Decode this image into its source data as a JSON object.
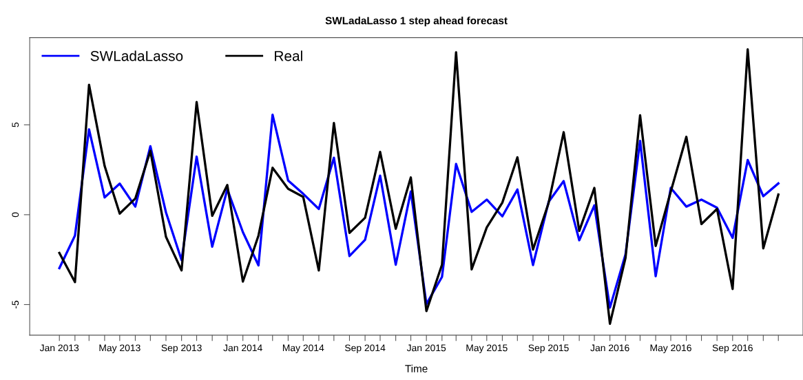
{
  "chart_data": {
    "type": "line",
    "title": "SWLadaLasso 1 step ahead forecast",
    "xlabel": "Time",
    "x": [
      "2013-01",
      "2013-02",
      "2013-03",
      "2013-04",
      "2013-05",
      "2013-06",
      "2013-07",
      "2013-08",
      "2013-09",
      "2013-10",
      "2013-11",
      "2013-12",
      "2014-01",
      "2014-02",
      "2014-03",
      "2014-04",
      "2014-05",
      "2014-06",
      "2014-07",
      "2014-08",
      "2014-09",
      "2014-10",
      "2014-11",
      "2014-12",
      "2015-01",
      "2015-02",
      "2015-03",
      "2015-04",
      "2015-05",
      "2015-06",
      "2015-07",
      "2015-08",
      "2015-09",
      "2015-10",
      "2015-11",
      "2015-12",
      "2016-01",
      "2016-02",
      "2016-03",
      "2016-04",
      "2016-05",
      "2016-06",
      "2016-07",
      "2016-08",
      "2016-09",
      "2016-10",
      "2016-11",
      "2016-12"
    ],
    "series": [
      {
        "name": "SWLadaLasso",
        "color": "#0000ff",
        "values": [
          -2.97,
          -1.16,
          4.75,
          0.96,
          1.73,
          0.45,
          3.81,
          0.13,
          -2.52,
          3.23,
          -1.78,
          1.42,
          -0.97,
          -2.82,
          5.56,
          1.9,
          1.16,
          0.32,
          3.17,
          -2.3,
          -1.4,
          2.17,
          -2.78,
          1.29,
          -4.97,
          -3.46,
          2.82,
          0.16,
          0.84,
          -0.09,
          1.4,
          -2.8,
          0.71,
          1.87,
          -1.42,
          0.52,
          -5.17,
          -2.2,
          4.11,
          -3.42,
          1.49,
          0.45,
          0.84,
          0.39,
          -1.29,
          3.04,
          1.03,
          1.74
        ]
      },
      {
        "name": "Real",
        "color": "#000000",
        "values": [
          -2.13,
          -3.75,
          7.23,
          2.71,
          0.06,
          0.9,
          3.55,
          -1.23,
          -3.1,
          6.27,
          -0.06,
          1.65,
          -3.72,
          -1.16,
          2.61,
          1.44,
          0.99,
          -3.1,
          5.1,
          -1.01,
          -0.17,
          3.49,
          -0.78,
          2.07,
          -5.36,
          -2.78,
          9.04,
          -3.04,
          -0.71,
          0.67,
          3.19,
          -1.94,
          0.65,
          4.59,
          -0.9,
          1.49,
          -6.07,
          -2.4,
          5.53,
          -1.74,
          1.29,
          4.33,
          -0.52,
          0.32,
          -4.13,
          9.2,
          -1.87,
          1.12
        ]
      }
    ],
    "xlim": [
      "2012-11-03",
      "2017-01-19"
    ],
    "xticks": [
      {
        "value": "2013-01",
        "label": "Jan 2013"
      },
      {
        "value": "2013-02",
        "label": null
      },
      {
        "value": "2013-03",
        "label": null
      },
      {
        "value": "2013-04",
        "label": null
      },
      {
        "value": "2013-05",
        "label": "May 2013"
      },
      {
        "value": "2013-06",
        "label": null
      },
      {
        "value": "2013-07",
        "label": null
      },
      {
        "value": "2013-08",
        "label": null
      },
      {
        "value": "2013-09",
        "label": "Sep 2013"
      },
      {
        "value": "2013-10",
        "label": null
      },
      {
        "value": "2013-11",
        "label": null
      },
      {
        "value": "2013-12",
        "label": null
      },
      {
        "value": "2014-01",
        "label": "Jan 2014"
      },
      {
        "value": "2014-02",
        "label": null
      },
      {
        "value": "2014-03",
        "label": null
      },
      {
        "value": "2014-04",
        "label": null
      },
      {
        "value": "2014-05",
        "label": "May 2014"
      },
      {
        "value": "2014-06",
        "label": null
      },
      {
        "value": "2014-07",
        "label": null
      },
      {
        "value": "2014-08",
        "label": null
      },
      {
        "value": "2014-09",
        "label": "Sep 2014"
      },
      {
        "value": "2014-10",
        "label": null
      },
      {
        "value": "2014-11",
        "label": null
      },
      {
        "value": "2014-12",
        "label": null
      },
      {
        "value": "2015-01",
        "label": "Jan 2015"
      },
      {
        "value": "2015-02",
        "label": null
      },
      {
        "value": "2015-03",
        "label": null
      },
      {
        "value": "2015-04",
        "label": null
      },
      {
        "value": "2015-05",
        "label": "May 2015"
      },
      {
        "value": "2015-06",
        "label": null
      },
      {
        "value": "2015-07",
        "label": null
      },
      {
        "value": "2015-08",
        "label": null
      },
      {
        "value": "2015-09",
        "label": "Sep 2015"
      },
      {
        "value": "2015-10",
        "label": null
      },
      {
        "value": "2015-11",
        "label": null
      },
      {
        "value": "2015-12",
        "label": null
      },
      {
        "value": "2016-01",
        "label": "Jan 2016"
      },
      {
        "value": "2016-02",
        "label": null
      },
      {
        "value": "2016-03",
        "label": null
      },
      {
        "value": "2016-04",
        "label": null
      },
      {
        "value": "2016-05",
        "label": "May 2016"
      },
      {
        "value": "2016-06",
        "label": null
      },
      {
        "value": "2016-07",
        "label": null
      },
      {
        "value": "2016-08",
        "label": null
      },
      {
        "value": "2016-09",
        "label": "Sep 2016"
      },
      {
        "value": "2016-10",
        "label": null
      },
      {
        "value": "2016-11",
        "label": null
      },
      {
        "value": "2016-12",
        "label": null
      }
    ],
    "ylim": [
      -6.7,
      9.85
    ],
    "yticks": [
      -5,
      0,
      5
    ],
    "legend": "top left",
    "grid": false,
    "marker": "none",
    "line_style": "solid"
  }
}
